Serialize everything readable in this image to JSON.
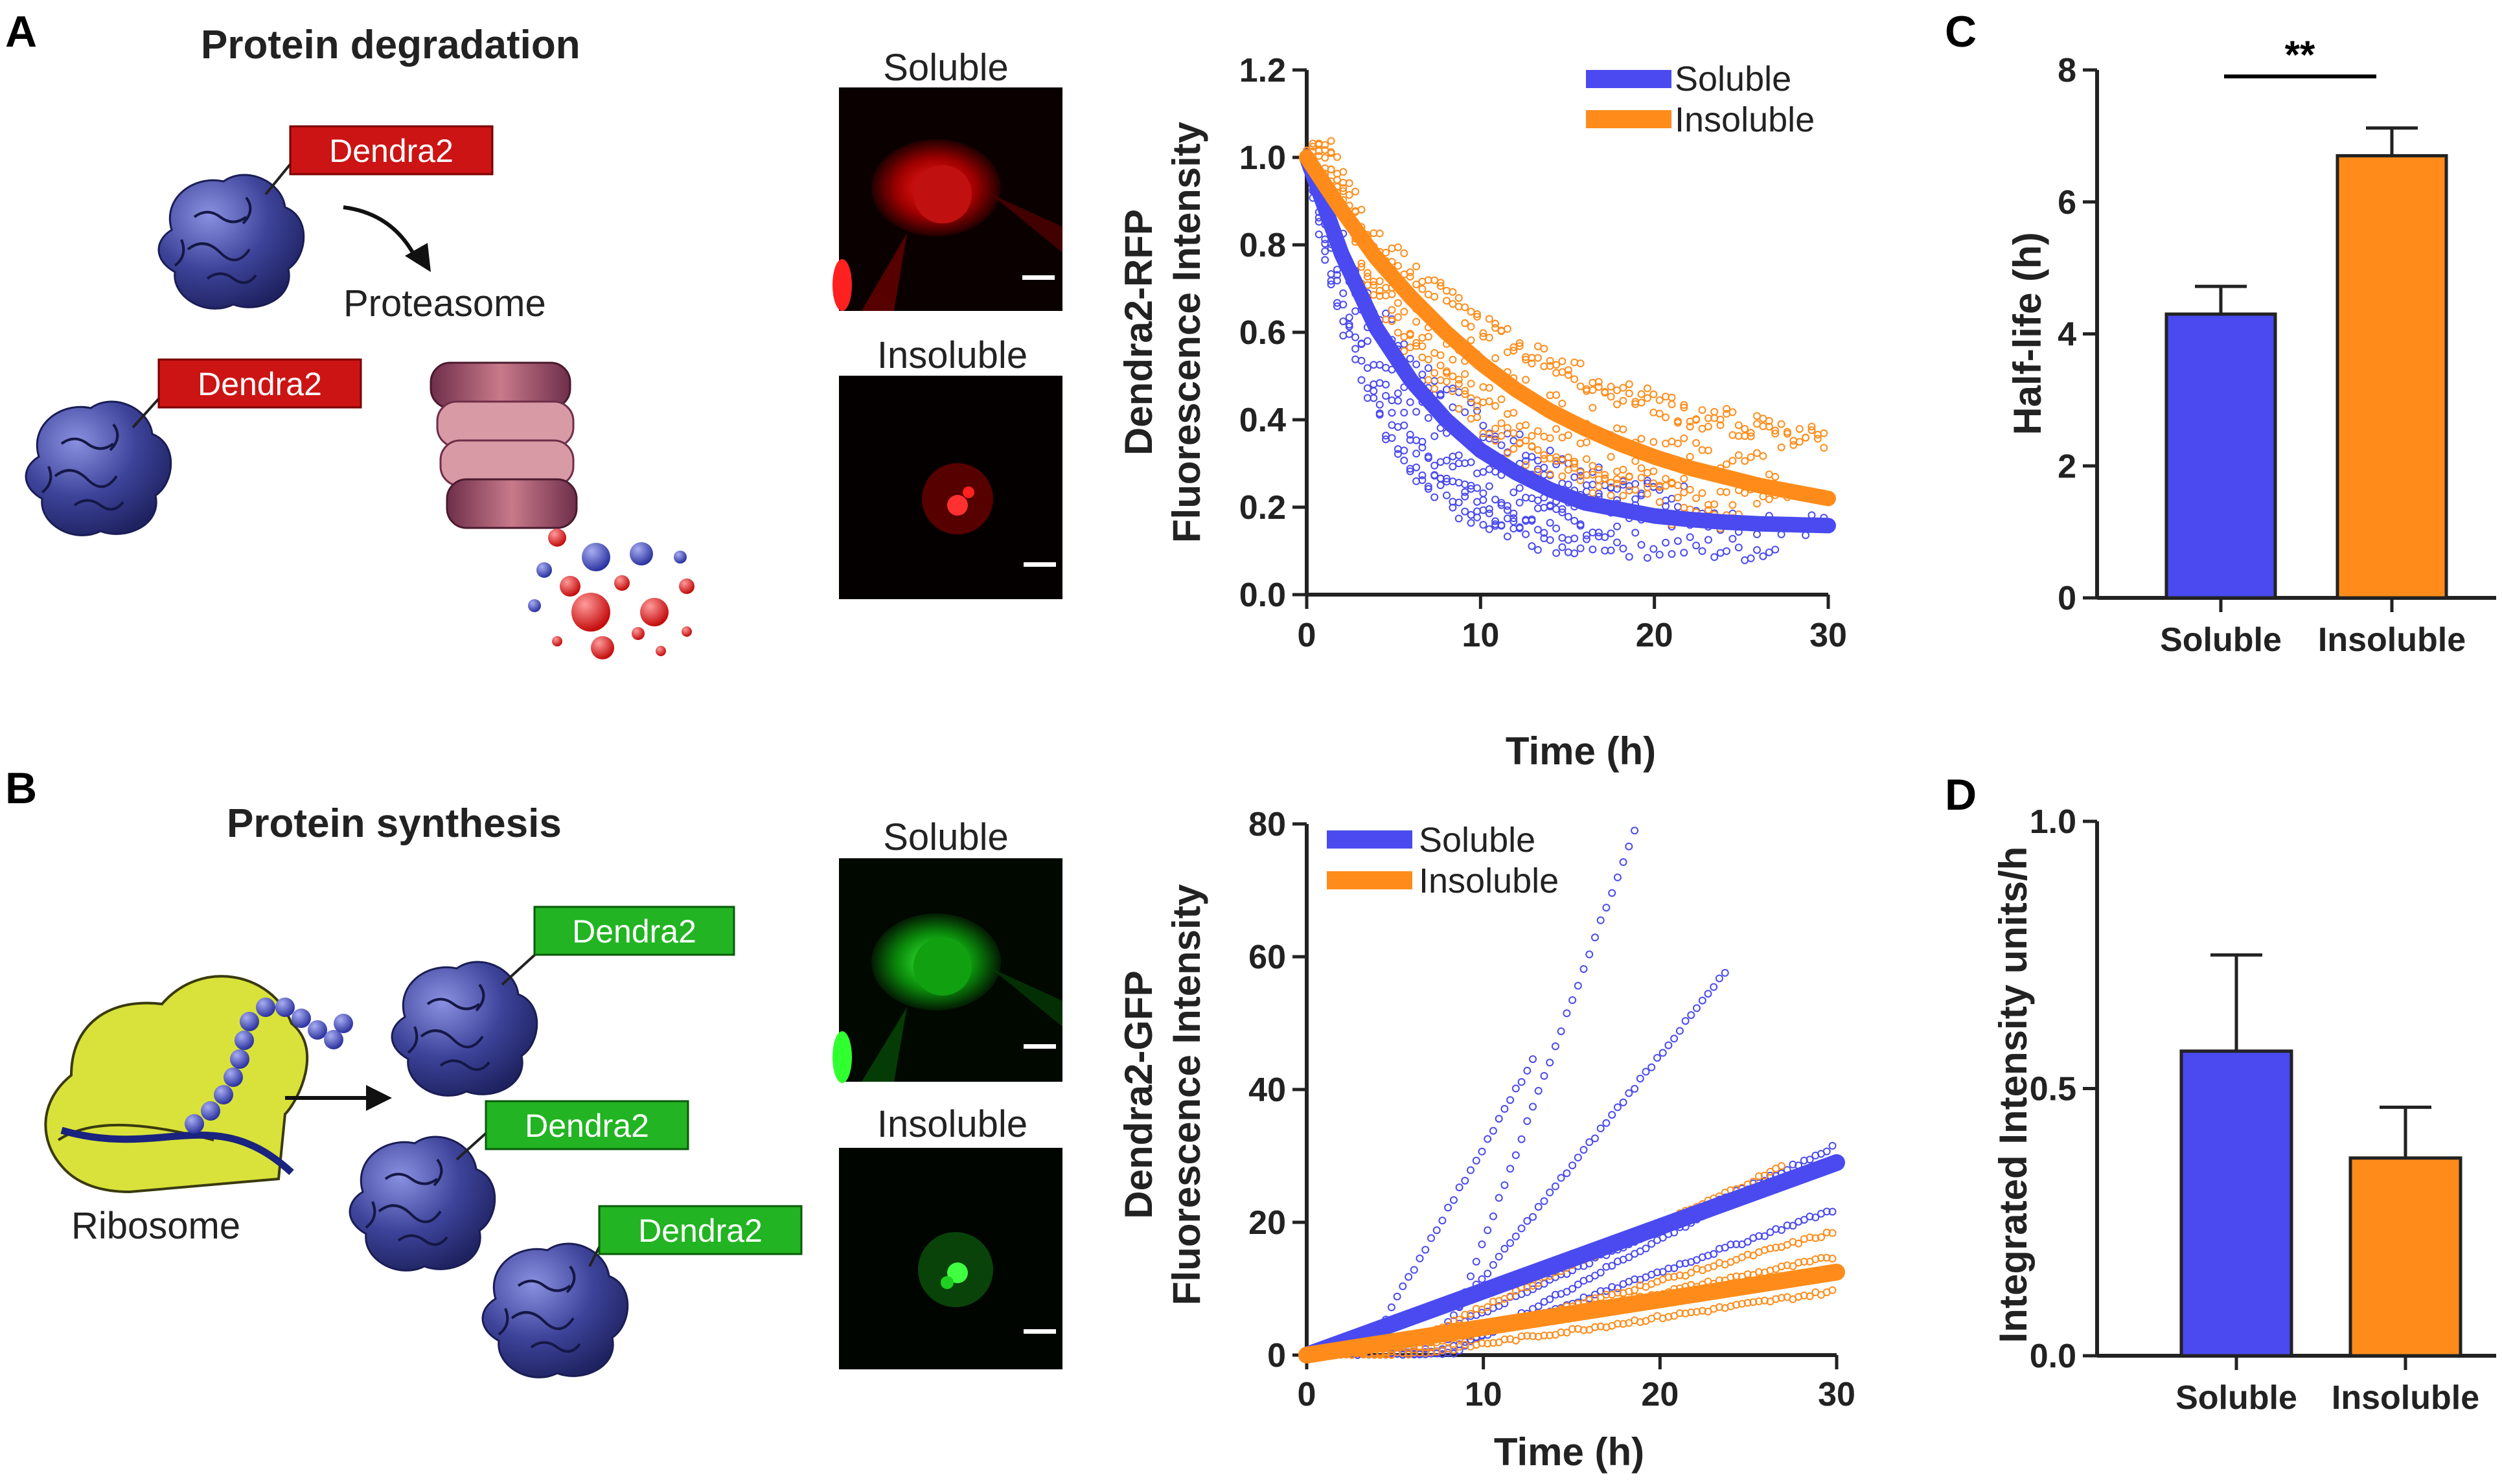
{
  "panels": {
    "A": {
      "letter": "A",
      "heading": "Protein degradation",
      "tag_label": "Dendra2",
      "proteasome_label": "Proteasome",
      "micro_top": "Soluble",
      "micro_bottom": "Insoluble"
    },
    "B": {
      "letter": "B",
      "heading": "Protein synthesis",
      "tag_label": "Dendra2",
      "ribosome_label": "Ribosome",
      "micro_top": "Soluble",
      "micro_bottom": "Insoluble"
    },
    "C": {
      "letter": "C"
    },
    "D": {
      "letter": "D"
    }
  },
  "colors": {
    "soluble": "#4a4af0",
    "insoluble": "#ff8c1a",
    "dendra_red": "#cc1414",
    "dendra_green": "#22b422",
    "protein": "#3a3f9a",
    "ribosome": "#d8e23a"
  },
  "chart_data": [
    {
      "id": "A-decay",
      "type": "scatter",
      "title": "",
      "xlabel": "Time (h)",
      "ylabel_line1": "Dendra2-RFP",
      "ylabel_line2": "Fluorescence Intensity",
      "xlim": [
        0,
        30
      ],
      "ylim": [
        0,
        1.2
      ],
      "xticks": [
        "0",
        "10",
        "20",
        "30"
      ],
      "yticks": [
        "0.0",
        "0.2",
        "0.4",
        "0.6",
        "0.8",
        "1.0",
        "1.2"
      ],
      "legend_position": "top-right",
      "series": [
        {
          "name": "Soluble",
          "fit": {
            "x": [
              0,
              2,
              4,
              6,
              8,
              10,
              12,
              14,
              16,
              18,
              20,
              22,
              24,
              26,
              28,
              30
            ],
            "y": [
              1.0,
              0.78,
              0.61,
              0.49,
              0.4,
              0.33,
              0.28,
              0.24,
              0.21,
              0.195,
              0.18,
              0.172,
              0.166,
              0.162,
              0.16,
              0.158
            ]
          }
        },
        {
          "name": "Insoluble",
          "fit": {
            "x": [
              0,
              2,
              4,
              6,
              8,
              10,
              12,
              14,
              16,
              18,
              20,
              22,
              24,
              26,
              28,
              30
            ],
            "y": [
              1.0,
              0.88,
              0.77,
              0.68,
              0.6,
              0.53,
              0.47,
              0.42,
              0.38,
              0.345,
              0.315,
              0.29,
              0.27,
              0.25,
              0.235,
              0.22
            ]
          }
        }
      ]
    },
    {
      "id": "B-synthesis",
      "type": "scatter",
      "title": "",
      "xlabel": "Time (h)",
      "ylabel_line1": "Dendra2-GFP",
      "ylabel_line2": "Fluorescence Intensity",
      "xlim": [
        0,
        30
      ],
      "ylim": [
        0,
        80
      ],
      "xticks": [
        "0",
        "10",
        "20",
        "30"
      ],
      "yticks": [
        "0",
        "20",
        "40",
        "60",
        "80"
      ],
      "legend_position": "top-left",
      "series": [
        {
          "name": "Soluble",
          "fit": {
            "x": [
              0,
              30
            ],
            "y": [
              0,
              29
            ]
          }
        },
        {
          "name": "Insoluble",
          "fit": {
            "x": [
              0,
              30
            ],
            "y": [
              0,
              12.5
            ]
          }
        }
      ]
    },
    {
      "id": "C-halflife",
      "type": "bar",
      "title": "",
      "xlabel": "",
      "ylabel": "Half-life (h)",
      "ylim": [
        0,
        8
      ],
      "yticks": [
        "0",
        "2",
        "4",
        "6",
        "8"
      ],
      "categories": [
        "Soluble",
        "Insoluble"
      ],
      "values": [
        4.3,
        6.7
      ],
      "errors": [
        0.42,
        0.42
      ],
      "significance": "**"
    },
    {
      "id": "D-synthesis-rate",
      "type": "bar",
      "title": "",
      "xlabel": "",
      "ylabel": "Integrated Intensity units/h",
      "ylim": [
        0,
        1.0
      ],
      "yticks": [
        "0.0",
        "0.5",
        "1.0"
      ],
      "categories": [
        "Soluble",
        "Insoluble"
      ],
      "values": [
        0.57,
        0.37
      ],
      "errors": [
        0.18,
        0.095
      ]
    }
  ]
}
